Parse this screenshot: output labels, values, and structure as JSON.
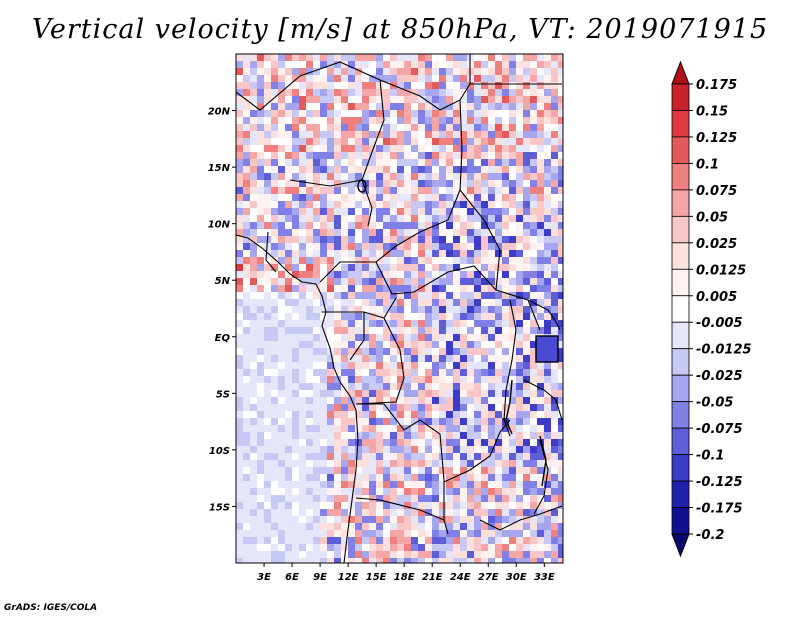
{
  "title": "Vertical velocity [m/s] at 850hPa, VT: 2019071915",
  "footer": "GrADS: IGES/COLA",
  "map": {
    "lon_range": [
      0,
      35
    ],
    "lat_range": [
      -20,
      25
    ],
    "x_ticks": [
      "3E",
      "6E",
      "9E",
      "12E",
      "15E",
      "18E",
      "21E",
      "24E",
      "27E",
      "30E",
      "33E"
    ],
    "y_ticks": [
      "20N",
      "15N",
      "10N",
      "5N",
      "EQ",
      "5S",
      "10S",
      "15S"
    ],
    "field": "vertical velocity",
    "units": "m/s",
    "level": "850hPa",
    "valid_time": "2019071915"
  },
  "colorbar": {
    "labels": [
      "0.175",
      "0.15",
      "0.125",
      "0.1",
      "0.075",
      "0.05",
      "0.025",
      "0.0125",
      "0.005",
      "-0.005",
      "-0.0125",
      "-0.025",
      "-0.05",
      "-0.075",
      "-0.1",
      "-0.125",
      "-0.175",
      "-0.2"
    ],
    "colors": [
      "#b01015",
      "#c8232a",
      "#dc3a3e",
      "#e45a5a",
      "#ee8080",
      "#f4a5a5",
      "#f8c6c6",
      "#fce0de",
      "#fff2f0",
      "#ffffff",
      "#e6e6fa",
      "#c8c8f4",
      "#a6a6ee",
      "#8080e6",
      "#5e5ed8",
      "#3c3cc6",
      "#2020ac",
      "#101090",
      "#080870"
    ]
  }
}
